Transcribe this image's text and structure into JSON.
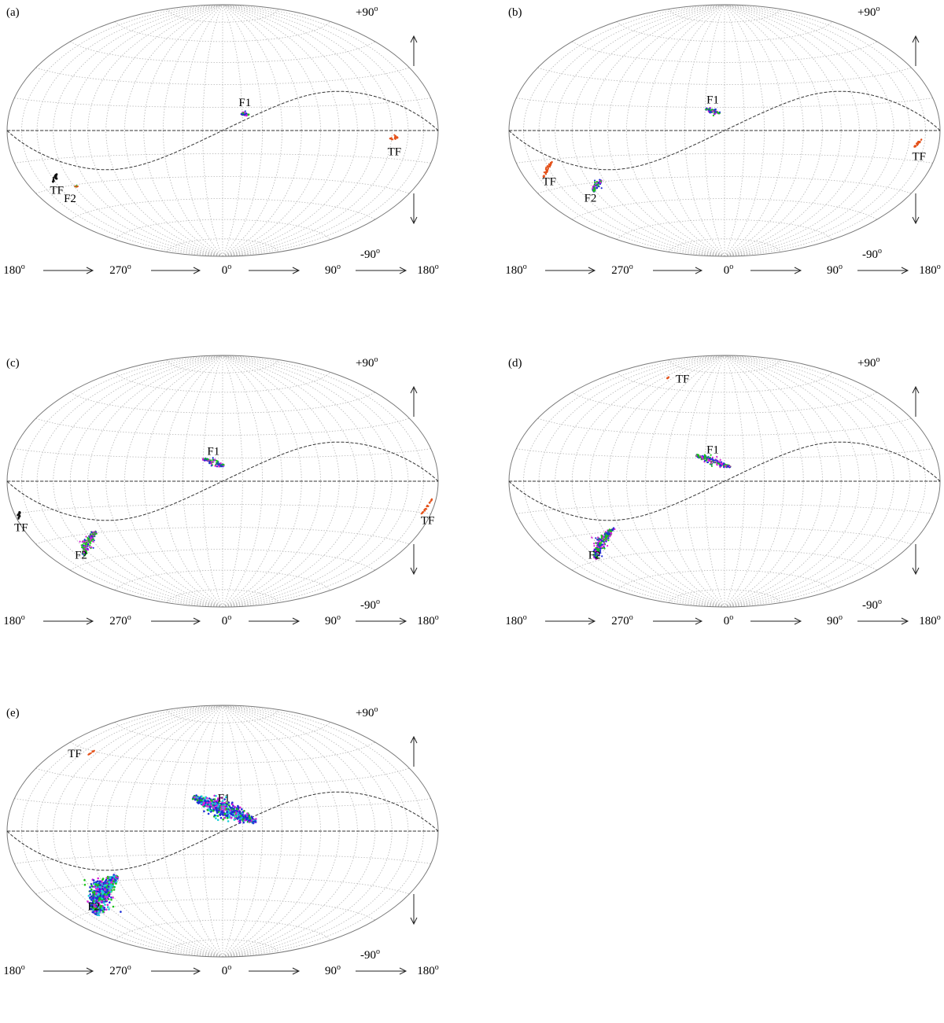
{
  "figure": {
    "latitude_labels": {
      "top": "+90",
      "bottom": "-90",
      "degree_mark": "o"
    },
    "longitude_labels": [
      "180",
      "270",
      "0",
      "90",
      "180"
    ],
    "colors": {
      "graticule": "#b5b5b5",
      "outline": "#7a7a7a",
      "ecliptic": "#333333",
      "equator": "#333333",
      "tf_orange": "#e4521b",
      "tf_black": "#111111",
      "blue": "#1f2fd6",
      "green": "#18c418",
      "magenta": "#d81ed8",
      "cyan": "#1ed0d8"
    }
  },
  "panels": [
    {
      "id": "a",
      "tag": "(a)",
      "features": [
        {
          "label": "F1",
          "tone": "blue",
          "lon": 17,
          "lat": 10.5,
          "theta": -6,
          "length": 6,
          "spread": 0.9,
          "n": 40
        },
        {
          "label": "TF",
          "tone": "orange",
          "lon": 137,
          "lat": -4,
          "theta": 5,
          "length": 7,
          "spread": 0.6,
          "n": 30
        },
        {
          "label": "TF",
          "tone": "black",
          "lon": -148,
          "lat": -25,
          "theta": 22,
          "length": 10,
          "spread": 0.6,
          "n": 30
        },
        {
          "label": "F2",
          "tone": "green",
          "lon": -133,
          "lat": -31,
          "theta": 0,
          "length": 3,
          "spread": 0.5,
          "n": 10
        }
      ]
    },
    {
      "id": "b",
      "tag": "(b)",
      "features": [
        {
          "label": "F1",
          "tone": "blue",
          "lon": -9,
          "lat": 12.5,
          "theta": -15,
          "length": 11,
          "spread": 1.2,
          "n": 80
        },
        {
          "label": "TF",
          "tone": "orange",
          "lon": 159,
          "lat": -6,
          "theta": 34,
          "length": 8,
          "spread": 0.6,
          "n": 30
        },
        {
          "label": "TF",
          "tone": "orange",
          "lon": -152,
          "lat": -20,
          "theta": 23,
          "length": 18,
          "spread": 0.6,
          "n": 50
        },
        {
          "label": "F2",
          "tone": "blue",
          "lon": -115,
          "lat": -32,
          "theta": 20,
          "length": 16,
          "spread": 1.2,
          "n": 90
        }
      ]
    },
    {
      "id": "c",
      "tag": "(c)",
      "features": [
        {
          "label": "F1",
          "tone": "blue",
          "lon": -7,
          "lat": 12,
          "theta": -15,
          "length": 17,
          "spread": 1.3,
          "n": 110
        },
        {
          "label": "TF",
          "tone": "orange",
          "lon": 173,
          "lat": -12,
          "theta": 52,
          "length": 10,
          "spread": 0.6,
          "n": 30
        },
        {
          "label": "TF",
          "tone": "black",
          "lon": -176,
          "lat": -16,
          "theta": 30,
          "length": 6,
          "spread": 0.6,
          "n": 25
        },
        {
          "label": "F2",
          "tone": "blue",
          "lon": -127,
          "lat": -35,
          "theta": 20,
          "length": 34,
          "spread": 1.4,
          "n": 220
        }
      ]
    },
    {
      "id": "d",
      "tag": "(d)",
      "features": [
        {
          "label": "F1",
          "tone": "blue",
          "lon": -9,
          "lat": 13,
          "theta": -16,
          "length": 28,
          "spread": 1.5,
          "n": 200
        },
        {
          "label": "TF",
          "tone": "orange",
          "lon": -98,
          "lat": 67,
          "theta": -30,
          "length": 2,
          "spread": 0.5,
          "n": 8
        },
        {
          "label": "F2",
          "tone": "blue",
          "lon": -116,
          "lat": -36,
          "theta": 20,
          "length": 46,
          "spread": 1.6,
          "n": 320
        }
      ]
    },
    {
      "id": "e",
      "tag": "(e)",
      "features": [
        {
          "label": "F1",
          "tone": "mix",
          "lon": 1,
          "lat": 14,
          "theta": -18,
          "length": 51,
          "spread": 3.4,
          "n": 650
        },
        {
          "label": "TF",
          "tone": "orange",
          "lon": -141,
          "lat": 44,
          "theta": 68,
          "length": 3,
          "spread": 0.5,
          "n": 12
        },
        {
          "label": "F2",
          "tone": "mix",
          "lon": -116,
          "lat": -37,
          "theta": 20,
          "length": 57,
          "spread": 3.3,
          "n": 850
        }
      ]
    }
  ]
}
